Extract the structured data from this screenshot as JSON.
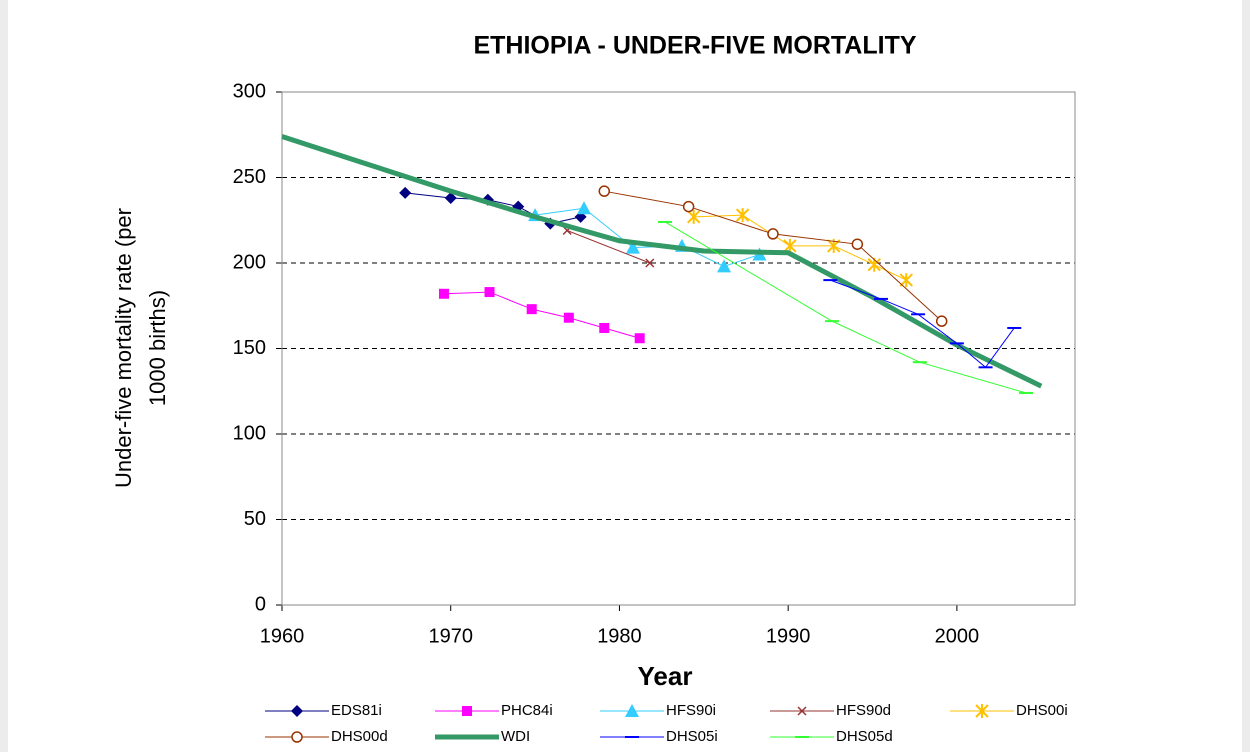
{
  "chart_data": {
    "type": "line",
    "title": "ETHIOPIA - UNDER-FIVE MORTALITY",
    "xlabel": "Year",
    "ylabel": [
      "Under-five mortality rate (per",
      "1000 births)"
    ],
    "xlim": [
      1960,
      2007
    ],
    "xticks": [
      1960,
      1970,
      1980,
      1990,
      2000
    ],
    "ylim": [
      0,
      300
    ],
    "yticks": [
      0,
      50,
      100,
      150,
      200,
      250,
      300
    ],
    "grid": true,
    "legend": "bottom",
    "series": [
      {
        "name": "EDS81i",
        "color": "#000080",
        "marker": "diamond",
        "width": 1,
        "x": [
          1967.3,
          1970,
          1972.2,
          1974,
          1975.9,
          1977.7
        ],
        "values": [
          241,
          238,
          237,
          233,
          223,
          227
        ]
      },
      {
        "name": "PHC84i",
        "color": "#ff00ff",
        "marker": "square",
        "width": 1,
        "x": [
          1969.6,
          1972.3,
          1974.8,
          1977,
          1979.1,
          1981.2
        ],
        "values": [
          182,
          183,
          173,
          168,
          162,
          156
        ]
      },
      {
        "name": "HFS90i",
        "color": "#33ccff",
        "marker": "triangle",
        "width": 1,
        "x": [
          1975,
          1977.9,
          1980.8,
          1983.7,
          1986.2,
          1988.3
        ],
        "values": [
          228,
          232,
          209,
          210,
          198,
          205
        ]
      },
      {
        "name": "HFS90d",
        "color": "#993333",
        "marker": "cross",
        "width": 1,
        "x": [
          1976.9,
          1981.8
        ],
        "values": [
          219,
          200
        ]
      },
      {
        "name": "DHS00i",
        "color": "#ffc000",
        "marker": "star",
        "width": 1,
        "x": [
          1984.4,
          1987.3,
          1990.1,
          1992.7,
          1995.1,
          1997
        ],
        "values": [
          227,
          228,
          210,
          210,
          199,
          190
        ]
      },
      {
        "name": "DHS00d",
        "color": "#993300",
        "marker": "circle",
        "width": 1,
        "x": [
          1979.1,
          1984.1,
          1989.1,
          1994.1,
          1999.1
        ],
        "values": [
          242,
          233,
          217,
          211,
          166
        ]
      },
      {
        "name": "WDI",
        "color": "#339966",
        "marker": "none",
        "width": 5,
        "x": [
          1960,
          1965,
          1970,
          1975,
          1980,
          1985,
          1990,
          1995,
          2000,
          2005
        ],
        "values": [
          274,
          258,
          242,
          227,
          213,
          207,
          206,
          180,
          152,
          128
        ]
      },
      {
        "name": "DHS05i",
        "color": "#0000ff",
        "marker": "dash",
        "width": 1,
        "x": [
          1992.5,
          1995.5,
          1997.7,
          2000,
          2001.7,
          2003.4
        ],
        "values": [
          190,
          179,
          170,
          153,
          139,
          162
        ]
      },
      {
        "name": "DHS05d",
        "color": "#33ff33",
        "marker": "dash",
        "width": 1,
        "x": [
          1982.7,
          1992.6,
          1997.8,
          2004.1
        ],
        "values": [
          224,
          166,
          142,
          124
        ]
      }
    ]
  }
}
